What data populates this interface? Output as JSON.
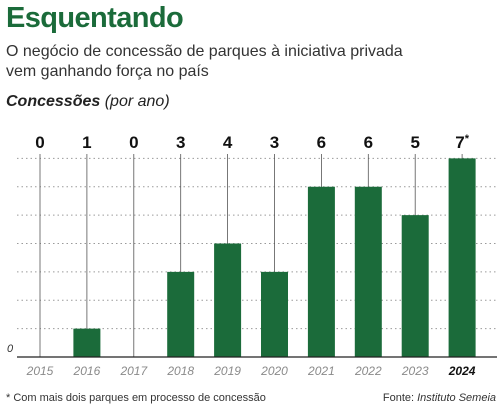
{
  "header": {
    "title": "Esquentando",
    "subtitle_lines": [
      "O negócio de concessão de parques à iniciativa privada",
      "vem ganhando força no país"
    ],
    "chart_heading": "Concessões",
    "chart_unit": "(por ano)"
  },
  "chart_data": {
    "type": "bar",
    "title": "Concessões",
    "subtitle": "(por ano)",
    "categories": [
      "2015",
      "2016",
      "2017",
      "2018",
      "2019",
      "2020",
      "2021",
      "2022",
      "2023",
      "2024"
    ],
    "values": [
      0,
      1,
      0,
      3,
      4,
      3,
      6,
      6,
      5,
      7
    ],
    "value_labels": [
      "0",
      "1",
      "0",
      "3",
      "4",
      "3",
      "6",
      "6",
      "5",
      "7*"
    ],
    "highlight_category": "2024",
    "zero_label": "0",
    "ylim": [
      0,
      8
    ],
    "grid": "dotted horizontal",
    "bar_color": "#1b6b3a",
    "accent_color": "#1b6b3a"
  },
  "footer": {
    "footnote": "* Com mais dois parques em processo de concessão",
    "source_prefix": "Fonte:",
    "source_name": "Instituto Semeia"
  }
}
